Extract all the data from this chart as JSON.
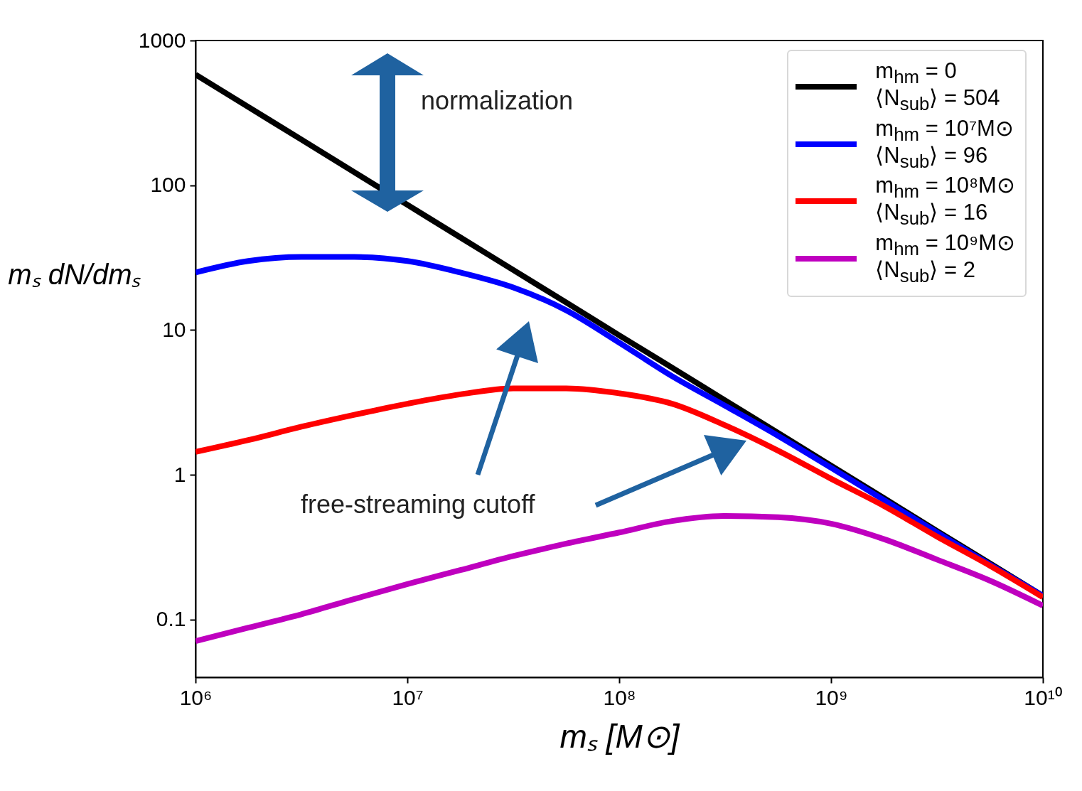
{
  "chart_data": {
    "type": "line",
    "xlabel": "mₛ [M⊙]",
    "ylabel": "mₛ dN/dmₛ",
    "x": [
      1000000,
      1778000,
      3162000,
      5623000,
      10000000,
      17780000,
      31620000,
      56230000,
      100000000,
      177800000,
      316200000,
      562300000,
      1000000000,
      1778000000,
      3162000000,
      5623000000,
      10000000000
    ],
    "series": [
      {
        "name": "m$_{hm}$ = 0\n⟨N$_{sub}$⟩ = 504",
        "color": "#000000",
        "values": [
          582,
          347,
          207,
          123,
          73.3,
          43.7,
          26,
          15.5,
          9.2,
          5.5,
          3.27,
          1.95,
          1.16,
          0.69,
          0.41,
          0.245,
          0.146
        ]
      },
      {
        "name": "m$_{hm}$ = 10⁷M⊙\n⟨N$_{sub}$⟩ = 96",
        "color": "#0000ff",
        "values": [
          25,
          30,
          32,
          32,
          30,
          25,
          19.7,
          13.7,
          8.2,
          4.8,
          3.0,
          1.86,
          1.12,
          0.67,
          0.4,
          0.24,
          0.146
        ]
      },
      {
        "name": "m$_{hm}$ = 10⁸M⊙\n⟨N$_{sub}$⟩ = 16",
        "color": "#ff0000",
        "values": [
          1.44,
          1.74,
          2.15,
          2.6,
          3.1,
          3.6,
          3.96,
          3.96,
          3.66,
          3.1,
          2.2,
          1.47,
          0.94,
          0.61,
          0.375,
          0.236,
          0.143
        ]
      },
      {
        "name": "m$_{hm}$ = 10⁹M⊙\n⟨N$_{sub}$⟩ = 2",
        "color": "#bf00bf",
        "values": [
          0.071,
          0.088,
          0.109,
          0.139,
          0.176,
          0.22,
          0.275,
          0.335,
          0.4,
          0.48,
          0.52,
          0.51,
          0.46,
          0.36,
          0.26,
          0.186,
          0.125
        ]
      }
    ],
    "xlim": [
      1000000,
      10000000000
    ],
    "ylim": [
      0.04,
      1000
    ],
    "xticks": [
      {
        "value": 1000000,
        "label": "10⁶"
      },
      {
        "value": 10000000,
        "label": "10⁷"
      },
      {
        "value": 100000000,
        "label": "10⁸"
      },
      {
        "value": 1000000000,
        "label": "10⁹"
      },
      {
        "value": 10000000000,
        "label": "10¹⁰"
      }
    ],
    "yticks": [
      0.1,
      1,
      10,
      100,
      1000
    ],
    "log": "xy",
    "grid": false,
    "legend": "top right",
    "marker": "none",
    "line_style": "solid",
    "annotations": [
      "normalization",
      "free-streaming cutoff"
    ]
  }
}
